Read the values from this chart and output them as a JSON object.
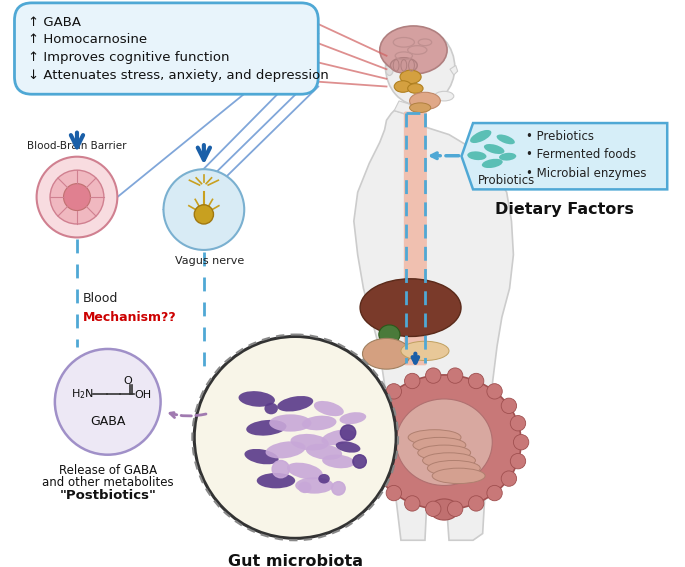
{
  "bg_color": "#ffffff",
  "box1_text": [
    "↑ GABA",
    "↑ Homocarnosine",
    "↑ Improves cognitive function",
    "↓ Attenuates stress, anxiety, and depression"
  ],
  "box1_color": "#e8f4fb",
  "box1_border": "#4fa8d5",
  "dietary_title": "Dietary Factors",
  "dietary_items": [
    "• Prebiotics",
    "• Fermented foods",
    "• Microbial enzymes"
  ],
  "dietary_box_color": "#d6eef8",
  "dietary_box_border": "#4fa8d5",
  "probiotics_label": "Probiotics",
  "bbb_label": "Blood-Brain Barrier",
  "blood_label": "Blood",
  "mechanism_label": "Mechanism??",
  "mechanism_color": "#cc0000",
  "vagus_label": "Vagus nerve",
  "gut_label": "Gut microbiota",
  "gaba_label": "GABA",
  "postbiotics_line1": "Release of GABA",
  "postbiotics_line2": "and other metabolites",
  "postbiotics_line3": "\"Postbiotics\"",
  "arrow_blue": "#1a5fa8",
  "arrow_dashed_blue": "#4fa8d5",
  "arrow_dashed_purple": "#a07ab0",
  "body_fill": "#efefef",
  "body_edge": "#cccccc",
  "brain_fill": "#d4a0a0",
  "brainstem_fill": "#d4a040",
  "oral_fill": "#e8b090",
  "liver_fill": "#7a3a2a",
  "gb_fill": "#4a7a3a",
  "intestine_fill": "#c87878",
  "stomach_fill": "#d4a080",
  "pancreas_fill": "#e8c898",
  "gut_circle_bg": "#f8f5e8",
  "bacteria_dark": "#5a3a8a",
  "bacteria_light": "#c8a8d8",
  "bbb_outer": "#f8dce0",
  "bbb_mid": "#f0b8c0",
  "bbb_core": "#e08090",
  "vagus_fill": "#d8ebf5",
  "vagus_edge": "#7ab0d0",
  "neuron_color": "#c8a020",
  "gaba_circle_fill": "#ede8f5",
  "gaba_circle_edge": "#a090c8",
  "teal_bacteria": "#5bbfb5",
  "red_line": "#d06060",
  "blue_line": "#6090d0"
}
